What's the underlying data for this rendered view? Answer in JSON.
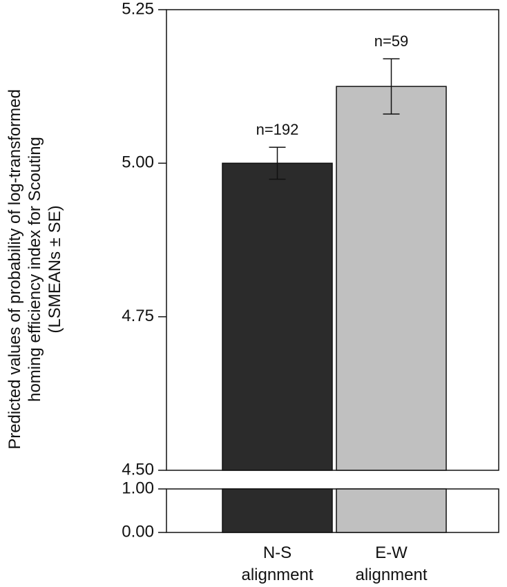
{
  "chart_data": {
    "type": "bar",
    "categories": [
      {
        "line1": "N-S",
        "line2": "alignment"
      },
      {
        "line1": "E-W",
        "line2": "alignment"
      }
    ],
    "values": [
      5.0,
      5.125
    ],
    "se": [
      0.026,
      0.045
    ],
    "n_labels": [
      "n=192",
      "n=59"
    ],
    "colors": [
      "#2b2b2b",
      "#c0c0c0"
    ],
    "ylabel_lines": [
      "Predicted values of probability of log-transformed",
      "homing efficiency index for Scouting",
      "(LSMEANs ± SE)"
    ],
    "axis_break": true,
    "upper_ylim": [
      4.5,
      5.25
    ],
    "upper_ticks": [
      "4.50",
      "4.75",
      "5.00",
      "5.25"
    ],
    "lower_ylim": [
      0.0,
      1.0
    ],
    "lower_ticks": [
      "0.00",
      "1.00"
    ],
    "grid": false
  }
}
